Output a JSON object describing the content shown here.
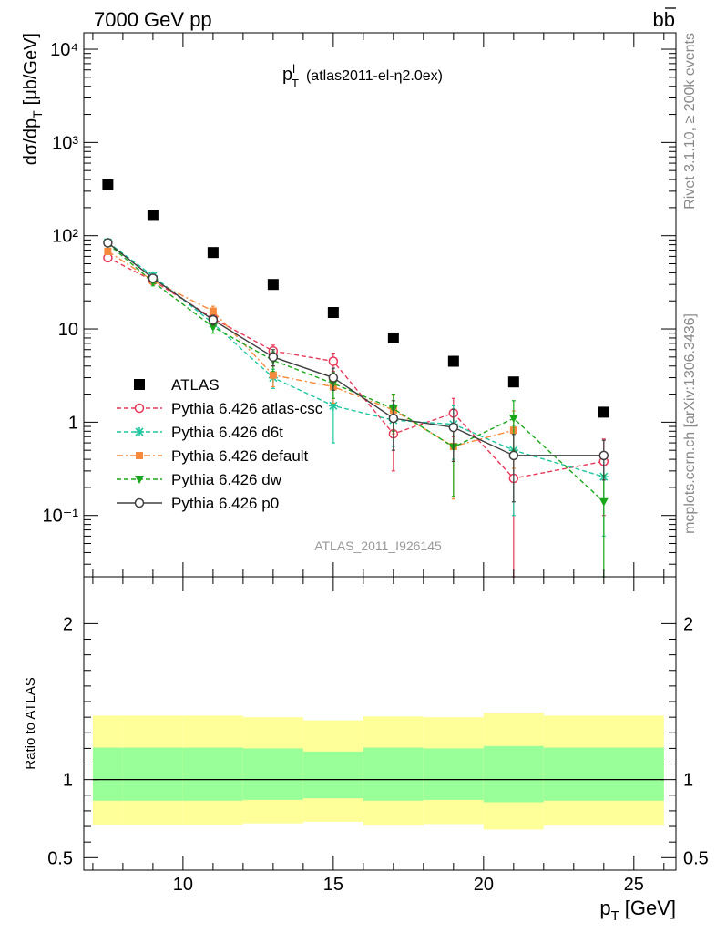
{
  "header": {
    "left": "7000 GeV pp",
    "right_base": "b",
    "right_bar": "b"
  },
  "side": {
    "rivet": "Rivet 3.1.10, ≥ 200k events",
    "mcplots": "mcplots.cern.ch [arXiv:1306.3436]"
  },
  "colors": {
    "atlas": "#000000",
    "atlas_csc": "#e8385a",
    "d6t": "#1ec8a0",
    "default": "#f58a3c",
    "dw": "#1aa81a",
    "p0": "#404040",
    "band_outer": "#ffff99",
    "band_inner": "#99ff99"
  },
  "chart_data": [
    {
      "type": "scatter",
      "title_main": "p",
      "title_sup": "l",
      "title_sub": "T",
      "title_rest": "(atlas2011-el-η2.0ex)",
      "watermark": "ATLAS_2011_I926145",
      "ylabel": "dσ/dp",
      "ylabel_sub": "T",
      "ylabel_unit": "[μb/GeV]",
      "yscale": "log",
      "ylim": [
        0.022,
        15000
      ],
      "xlim": [
        6.7,
        26.4
      ],
      "y_ticks": [
        {
          "value": 0.1,
          "label": "10⁻¹"
        },
        {
          "value": 1,
          "label": "1"
        },
        {
          "value": 10,
          "label": "10"
        },
        {
          "value": 100,
          "label": "10²"
        },
        {
          "value": 1000,
          "label": "10³"
        },
        {
          "value": 10000,
          "label": "10⁴"
        }
      ],
      "series": [
        {
          "name": "ATLAS",
          "key": "atlas",
          "marker": "square",
          "line": "none",
          "x": [
            7.5,
            9,
            11,
            13,
            15,
            17,
            19,
            21,
            24
          ],
          "y": [
            350,
            165,
            66,
            30,
            15,
            8,
            4.5,
            2.7,
            1.28
          ],
          "yerr": [
            0,
            0,
            0,
            0,
            0,
            0,
            0,
            0,
            0
          ]
        },
        {
          "name": "Pythia 6.426 atlas-csc",
          "key": "atlas_csc",
          "marker": "open-circle",
          "line": "dashed",
          "x": [
            7.5,
            9,
            11,
            13,
            15,
            17,
            19,
            21,
            24
          ],
          "y": [
            58,
            33,
            13,
            5.8,
            4.5,
            0.75,
            1.25,
            0.25,
            0.38
          ],
          "yerr": [
            5,
            3,
            1.5,
            0.9,
            1,
            0.45,
            0.55,
            0.24,
            0.28
          ]
        },
        {
          "name": "Pythia 6.426 d6t",
          "key": "d6t",
          "marker": "star",
          "line": "dashed",
          "x": [
            7.5,
            9,
            11,
            13,
            15,
            17,
            19,
            21,
            24
          ],
          "y": [
            85,
            37,
            11.5,
            3,
            1.5,
            1.05,
            0.95,
            0.5,
            0.26
          ],
          "yerr": [
            6,
            3,
            1.5,
            0.7,
            0.9,
            0.5,
            0.55,
            0.4,
            0.2
          ]
        },
        {
          "name": "Pythia 6.426 default",
          "key": "default",
          "marker": "filled-square",
          "line": "dashdot",
          "x": [
            7.5,
            9,
            11,
            13,
            15,
            17,
            19,
            21
          ],
          "y": [
            68,
            33,
            15.5,
            3.2,
            2.4,
            1.35,
            0.55,
            0.82
          ],
          "yerr": [
            5,
            3,
            2,
            0.8,
            0.8,
            0.6,
            0.4,
            0.5
          ]
        },
        {
          "name": "Pythia 6.426 dw",
          "key": "dw",
          "marker": "down-triangle",
          "line": "dashed",
          "x": [
            7.5,
            9,
            11,
            13,
            15,
            17,
            19,
            21,
            24
          ],
          "y": [
            82,
            32,
            10.5,
            4.6,
            2.6,
            1.4,
            0.54,
            1.1,
            0.14
          ],
          "yerr": [
            6,
            3,
            1.5,
            1.1,
            0.8,
            0.6,
            0.38,
            0.6,
            0.13
          ]
        },
        {
          "name": "Pythia 6.426 p0",
          "key": "p0",
          "marker": "open-circle",
          "line": "solid",
          "x": [
            7.5,
            9,
            11,
            13,
            15,
            17,
            19,
            21,
            24
          ],
          "y": [
            84,
            35,
            12.5,
            5,
            3,
            1.1,
            0.88,
            0.44,
            0.44
          ],
          "yerr": [
            6,
            3,
            1.5,
            1,
            0.8,
            0.6,
            0.5,
            0.3,
            0.2
          ]
        }
      ]
    },
    {
      "type": "area",
      "ylabel": "Ratio to ATLAS",
      "xlabel": "p",
      "xlabel_sub": "T",
      "xlabel_unit": "[GeV]",
      "xlim": [
        6.7,
        26.4
      ],
      "ylim": [
        0.42,
        2.3
      ],
      "x_ticks": [
        10,
        15,
        20,
        25
      ],
      "y_ticks": [
        {
          "value": 0.5,
          "label": "0.5"
        },
        {
          "value": 1,
          "label": "1"
        },
        {
          "value": 2,
          "label": "2"
        }
      ],
      "bins": [
        {
          "x0": 7,
          "x1": 8,
          "outer": [
            0.71,
            1.41
          ],
          "inner": [
            0.865,
            1.205
          ]
        },
        {
          "x0": 8,
          "x1": 10,
          "outer": [
            0.71,
            1.41
          ],
          "inner": [
            0.865,
            1.205
          ]
        },
        {
          "x0": 10,
          "x1": 12,
          "outer": [
            0.71,
            1.41
          ],
          "inner": [
            0.865,
            1.205
          ]
        },
        {
          "x0": 12,
          "x1": 14,
          "outer": [
            0.72,
            1.4
          ],
          "inner": [
            0.87,
            1.2
          ]
        },
        {
          "x0": 14,
          "x1": 16,
          "outer": [
            0.73,
            1.38
          ],
          "inner": [
            0.88,
            1.18
          ]
        },
        {
          "x0": 16,
          "x1": 18,
          "outer": [
            0.705,
            1.405
          ],
          "inner": [
            0.865,
            1.205
          ]
        },
        {
          "x0": 18,
          "x1": 20,
          "outer": [
            0.715,
            1.4
          ],
          "inner": [
            0.87,
            1.2
          ]
        },
        {
          "x0": 20,
          "x1": 22,
          "outer": [
            0.68,
            1.43
          ],
          "inner": [
            0.855,
            1.215
          ]
        },
        {
          "x0": 22,
          "x1": 26,
          "outer": [
            0.705,
            1.41
          ],
          "inner": [
            0.865,
            1.205
          ]
        }
      ],
      "reference": 1
    }
  ]
}
